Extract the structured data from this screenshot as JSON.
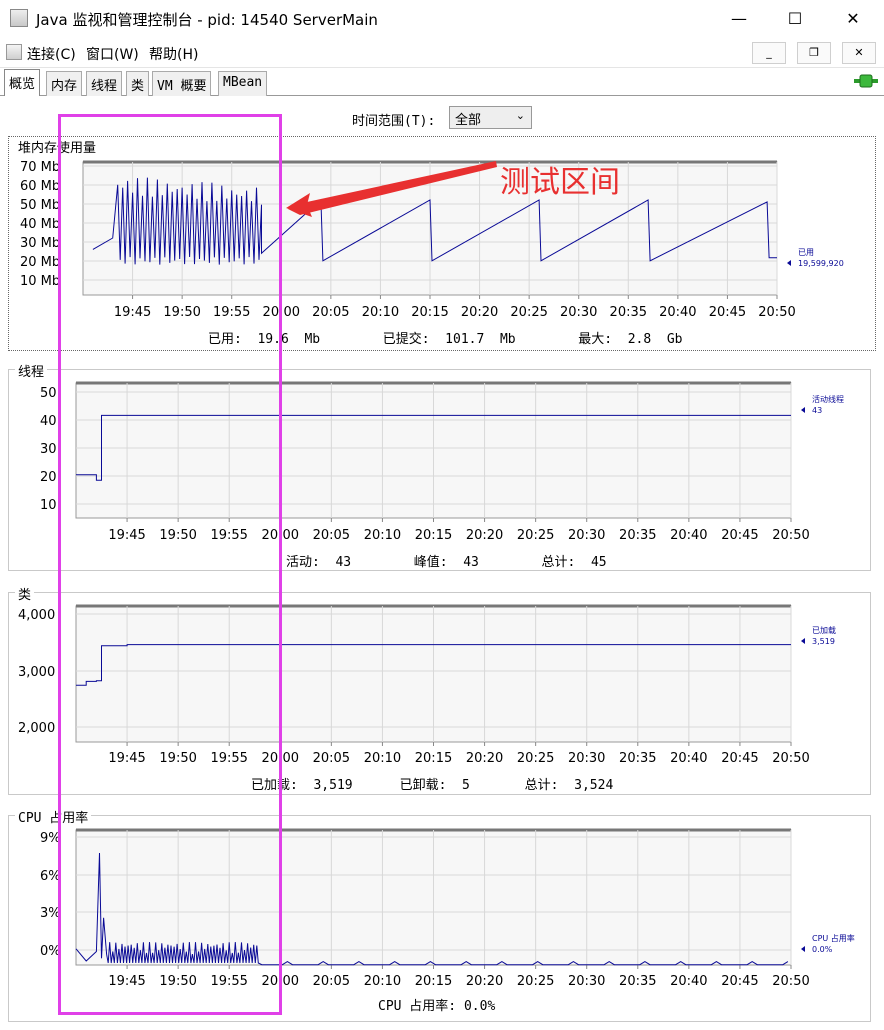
{
  "window": {
    "title": "Java 监视和管理控制台 - pid: 14540 ServerMain",
    "minimize": "—",
    "maximize": "☐",
    "close": "✕"
  },
  "menu": {
    "items": [
      "连接(C)",
      "窗口(W)",
      "帮助(H)"
    ],
    "mdi_minimize": "_",
    "mdi_restore": "❐",
    "mdi_close": "✕"
  },
  "tabs": [
    "概览",
    "内存",
    "线程",
    "类",
    "VM 概要",
    "MBean"
  ],
  "time_range": {
    "label": "时间范围(T):",
    "value": "全部"
  },
  "annotation": {
    "text": "测试区间",
    "color": "#e83030",
    "box_color": "#e040e8"
  },
  "x_ticks": [
    "19:45",
    "19:50",
    "19:55",
    "20:00",
    "20:05",
    "20:10",
    "20:15",
    "20:20",
    "20:25",
    "20:30",
    "20:35",
    "20:40",
    "20:45",
    "20:50"
  ],
  "panels": {
    "heap": {
      "title": "堆内存使用量",
      "y_ticks": [
        "70 Mb",
        "60 Mb",
        "50 Mb",
        "40 Mb",
        "30 Mb",
        "20 Mb",
        "10 Mb"
      ],
      "legend_name": "已用",
      "legend_value": "19,599,920",
      "summary": "已用:  19.6  Mb        已提交:  101.7  Mb        最大:  2.8  Gb"
    },
    "threads": {
      "title": "线程",
      "y_ticks": [
        "50",
        "40",
        "30",
        "20",
        "10"
      ],
      "legend_name": "活动线程",
      "legend_value": "43",
      "summary": "活动:  43        峰值:  43        总计:  45"
    },
    "classes": {
      "title": "类",
      "y_ticks": [
        "4,000",
        "3,000",
        "2,000"
      ],
      "legend_name": "已加载",
      "legend_value": "3,519",
      "summary": "已加载:  3,519      已卸载:  5       总计:  3,524"
    },
    "cpu": {
      "title": "CPU 占用率",
      "y_ticks": [
        "9%",
        "6%",
        "3%",
        "0%"
      ],
      "legend_name": "CPU 占用率",
      "legend_value": "0.0%",
      "summary": "CPU 占用率: 0.0%"
    }
  },
  "series_color": "#0a0a96",
  "chart_data": [
    {
      "type": "line",
      "title": "堆内存使用量",
      "ylabel": "Mb",
      "ylim": [
        0,
        70
      ],
      "x": [
        "19:41",
        "19:42",
        "19:43",
        "19:43.5",
        "19:44",
        "19:45",
        "19:46",
        "19:47",
        "19:48",
        "19:49",
        "19:50",
        "19:51",
        "19:52",
        "19:53",
        "19:54",
        "19:55",
        "19:56",
        "19:57",
        "19:58",
        "20:00",
        "20:04",
        "20:05",
        "20:15",
        "20:16",
        "20:26",
        "20:27",
        "20:37",
        "20:38",
        "20:49",
        "20:50"
      ],
      "series": [
        {
          "name": "已用",
          "values": [
            24,
            28,
            30,
            62,
            18,
            62,
            19,
            63,
            20,
            61,
            19,
            60,
            20,
            59,
            20,
            58,
            21,
            50,
            22,
            30,
            50,
            18,
            50,
            18,
            50,
            18,
            50,
            18,
            49,
            19.6
          ]
        }
      ]
    },
    {
      "type": "line",
      "title": "线程",
      "ylim": [
        5,
        55
      ],
      "x": [
        "19:40",
        "19:41",
        "19:42",
        "19:42.5",
        "19:43",
        "20:50"
      ],
      "series": [
        {
          "name": "活动线程",
          "values": [
            21,
            21,
            19,
            43,
            43,
            43
          ]
        }
      ]
    },
    {
      "type": "line",
      "title": "类",
      "ylim": [
        1800,
        4200
      ],
      "x": [
        "19:40",
        "19:41",
        "19:42",
        "19:42.5",
        "19:44",
        "19:45",
        "20:50"
      ],
      "series": [
        {
          "name": "已加载",
          "values": [
            2800,
            2870,
            2880,
            3500,
            3500,
            3519,
            3519
          ]
        }
      ]
    },
    {
      "type": "line",
      "title": "CPU 占用率",
      "ylim": [
        0,
        10
      ],
      "x": [
        "19:40",
        "19:42",
        "19:42.5",
        "19:43",
        "19:44",
        "19:50",
        "19:57",
        "19:58",
        "20:10",
        "20:50"
      ],
      "series": [
        {
          "name": "CPU 占用率",
          "values": [
            1.0,
            0.5,
            8.3,
            3.5,
            1.5,
            1.0,
            1.0,
            0.1,
            0.1,
            0.0
          ]
        }
      ]
    }
  ]
}
